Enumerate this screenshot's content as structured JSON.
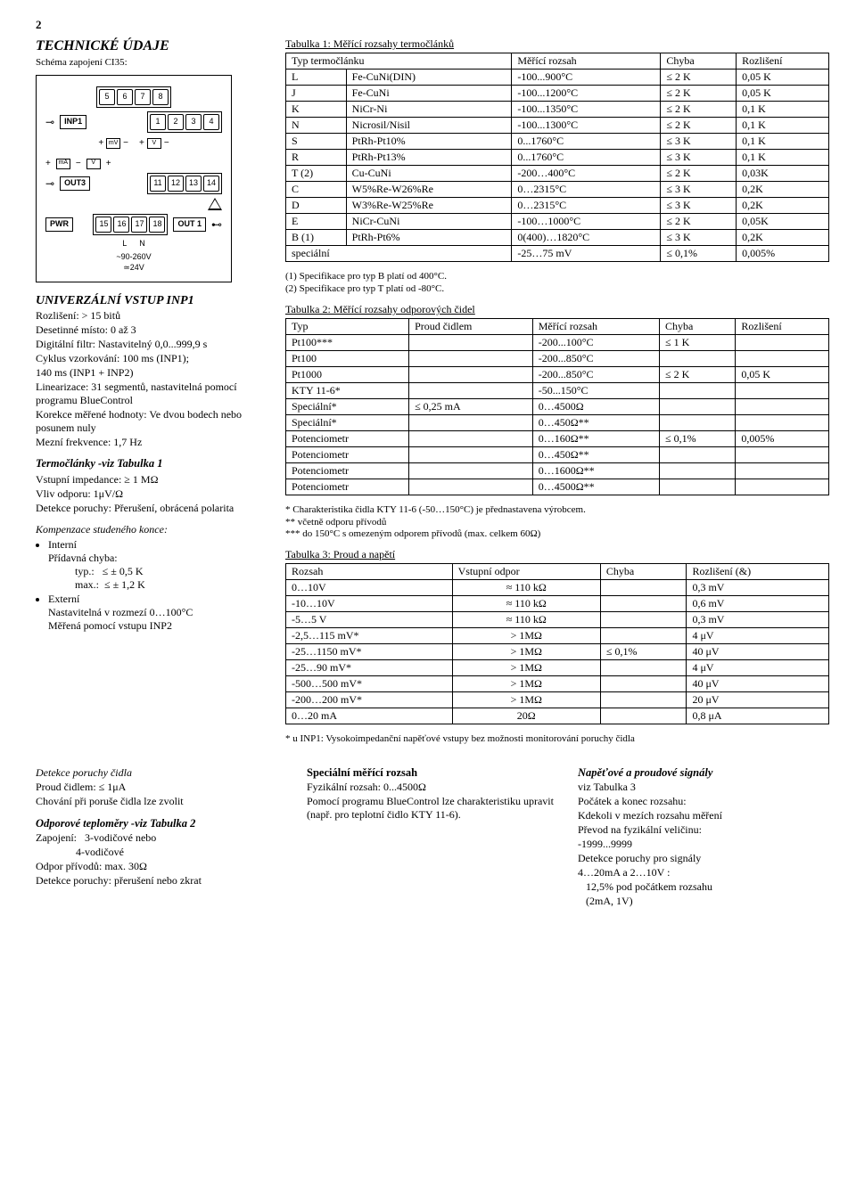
{
  "pageNumber": "2",
  "title": "TECHNICKÉ ÚDAJE",
  "schemaLabel": "Schéma zapojení CI35:",
  "diagram": {
    "ports": {
      "inp1": "INP1",
      "out3": "OUT3",
      "pwr": "PWR",
      "out1": "OUT 1"
    },
    "rows": {
      "top": [
        "5",
        "6",
        "7",
        "8"
      ],
      "r2": [
        "1",
        "2",
        "3",
        "4"
      ],
      "mid": [
        "11",
        "12",
        "13",
        "14"
      ],
      "bot": [
        "15",
        "16",
        "17",
        "18"
      ]
    },
    "icons": {
      "mv": "mV",
      "ma": "mA",
      "v": "V"
    },
    "power": {
      "l": "L",
      "n": "N",
      "ac": "~90-260V",
      "dc": "≃24V"
    }
  },
  "univTitle": "UNIVERZÁLNÍ VSTUP INP1",
  "univLines": {
    "l1": "Rozlišení: > 15 bitů",
    "l2": "Desetinné místo: 0 až 3",
    "l3": "Digitální filtr: Nastavitelný 0,0...999,9 s",
    "l4": "Cyklus vzorkování: 100 ms (INP1);",
    "l5": "140 ms (INP1 + INP2)",
    "l6": "Linearizace: 31 segmentů, nastavitelná pomocí programu BlueControl",
    "l7": "Korekce měřené hodnoty: Ve dvou bodech nebo posunem nuly",
    "l8": "Mezní frekvence: 1,7 Hz"
  },
  "tcHead": "Termočlánky -viz Tabulka 1",
  "tcLines": {
    "l1": "Vstupní impedance: ≥ 1 MΩ",
    "l2": "Vliv odporu: 1μV/Ω",
    "l3": "Detekce poruchy: Přerušení, obrácená polarita"
  },
  "compHead": "Kompenzace studeného konce:",
  "compLines": {
    "b1": "Interní",
    "b1a": "Přídavná chyba:",
    "b1b": "typ.:   ≤ ± 0,5 K",
    "b1c": "max.:  ≤ ± 1,2 K",
    "b2": "Externí",
    "b2a": "Nastavitelná v rozmezí 0…100°C",
    "b2b": "Měřená pomocí vstupu INP2"
  },
  "detHead": "Detekce poruchy čidla",
  "detLines": {
    "l1": "Proud čidlem: ≤ 1μA",
    "l2": "Chování při poruše čidla lze zvolit"
  },
  "rtdHead": "Odporové teploměry -viz Tabulka 2",
  "rtdLines": {
    "l1": "Zapojení:   3-vodičové nebo",
    "l1b": "               4-vodičové",
    "l2": "Odpor přívodů: max. 30Ω",
    "l3": "Detekce poruchy: přerušení nebo zkrat"
  },
  "table1": {
    "caption": "Tabulka 1: Měřící rozsahy termočlánků",
    "headers": [
      "Typ termočlánku",
      "",
      "Měřící rozsah",
      "Chyba",
      "Rozlišení"
    ],
    "rows": [
      [
        "L",
        "Fe-CuNi(DIN)",
        "-100...900°C",
        "≤ 2 K",
        "0,05 K"
      ],
      [
        "J",
        "Fe-CuNi",
        "-100...1200°C",
        "≤ 2 K",
        "0,05 K"
      ],
      [
        "K",
        "NiCr-Ni",
        "-100...1350°C",
        "≤ 2 K",
        "0,1 K"
      ],
      [
        "N",
        "Nicrosil/Nisil",
        "-100...1300°C",
        "≤ 2 K",
        "0,1 K"
      ],
      [
        "S",
        "PtRh-Pt10%",
        "0...1760°C",
        "≤ 3 K",
        "0,1 K"
      ],
      [
        "R",
        "PtRh-Pt13%",
        "0...1760°C",
        "≤ 3 K",
        "0,1 K"
      ],
      [
        "T (2)",
        "Cu-CuNi",
        "-200…400°C",
        "≤ 2 K",
        "0,03K"
      ],
      [
        "C",
        "W5%Re-W26%Re",
        "0…2315°C",
        "≤ 3 K",
        "0,2K"
      ],
      [
        "D",
        "W3%Re-W25%Re",
        "0…2315°C",
        "≤ 3 K",
        "0,2K"
      ],
      [
        "E",
        "NiCr-CuNi",
        "-100…1000°C",
        "≤ 2 K",
        "0,05K"
      ],
      [
        "B (1)",
        "PtRh-Pt6%",
        "0(400)…1820°C",
        "≤ 3 K",
        "0,2K"
      ]
    ],
    "specialRow": [
      "speciální",
      "",
      "-25…75 mV",
      "≤  0,1%",
      "0,005%"
    ],
    "foot1": "(1) Specifikace pro typ B platí od 400°C.",
    "foot2": "(2) Specifikace pro typ T platí od -80°C."
  },
  "table2": {
    "caption": "Tabulka 2: Měřící rozsahy odporových čidel",
    "headers": [
      "Typ",
      "Proud čidlem",
      "Měřící rozsah",
      "Chyba",
      "Rozlišení"
    ],
    "rows": [
      [
        "Pt100***",
        "",
        "-200...100°C",
        "≤ 1 K",
        ""
      ],
      [
        "Pt100",
        "",
        "-200...850°C",
        "",
        ""
      ],
      [
        "Pt1000",
        "",
        "-200...850°C",
        "≤ 2 K",
        "0,05 K"
      ],
      [
        "KTY 11-6*",
        "",
        "-50...150°C",
        "",
        ""
      ],
      [
        "Speciální*",
        "≤  0,25 mA",
        "0…4500Ω",
        "",
        ""
      ],
      [
        "Speciální*",
        "",
        "0…450Ω**",
        "",
        ""
      ],
      [
        "Potenciometr",
        "",
        "0…160Ω**",
        "≤  0,1%",
        "0,005%"
      ],
      [
        "Potenciometr",
        "",
        "0…450Ω**",
        "",
        ""
      ],
      [
        "Potenciometr",
        "",
        "0…1600Ω**",
        "",
        ""
      ],
      [
        "Potenciometr",
        "",
        "0…4500Ω**",
        "",
        ""
      ]
    ],
    "foot1": "*   Charakteristika čidla KTY 11-6 (-50…150°C) je přednastavena výrobcem.",
    "foot2": "**  včetně odporu přívodů",
    "foot3": "***  do 150°C s omezeným odporem přívodů (max. celkem 60Ω)"
  },
  "table3": {
    "caption": "Tabulka 3: Proud a napětí",
    "headers": [
      "Rozsah",
      "Vstupní odpor",
      "Chyba",
      "Rozlišení (&)"
    ],
    "rows": [
      [
        "0…10V",
        "≈ 110 kΩ",
        "",
        "0,3 mV"
      ],
      [
        "-10…10V",
        "≈ 110 kΩ",
        "",
        "0,6 mV"
      ],
      [
        "-5…5 V",
        "≈ 110 kΩ",
        "",
        "0,3 mV"
      ],
      [
        "-2,5…115 mV*",
        "> 1MΩ",
        "",
        "4 μV"
      ],
      [
        "-25…1150 mV*",
        "> 1MΩ",
        "≤  0,1%",
        "40 μV"
      ],
      [
        "-25…90 mV*",
        "> 1MΩ",
        "",
        "4 μV"
      ],
      [
        "-500…500 mV*",
        "> 1MΩ",
        "",
        "40 μV"
      ],
      [
        "-200…200 mV*",
        "> 1MΩ",
        "",
        "20 μV"
      ],
      [
        "0…20 mA",
        "20Ω",
        "",
        "0,8 μA"
      ]
    ],
    "foot": "*  u INP1: Vysokoimpedanční napěťové vstupy bez možnosti monitorování poruchy čidla"
  },
  "bottom": {
    "col1": {
      "head": "Speciální měřící rozsah",
      "l1": "Fyzikální rozsah:   0...4500Ω",
      "l2": "Pomocí programu BlueControl lze charakteristiku upravit (např. pro teplotní čidlo KTY 11-6)."
    },
    "col2": {
      "head": "Napěťové a proudové signály",
      "sub": "viz Tabulka 3",
      "l1": "Počátek a konec rozsahu:",
      "l2": "Kdekoli v mezích rozsahu měření",
      "l3": "Převod na fyzikální veličinu:",
      "l4": "-1999...9999",
      "l5": "Detekce poruchy pro signály",
      "l6": "4…20mA a 2…10V :",
      "l7": "   12,5% pod počátkem rozsahu",
      "l8": "   (2mA, 1V)"
    }
  }
}
